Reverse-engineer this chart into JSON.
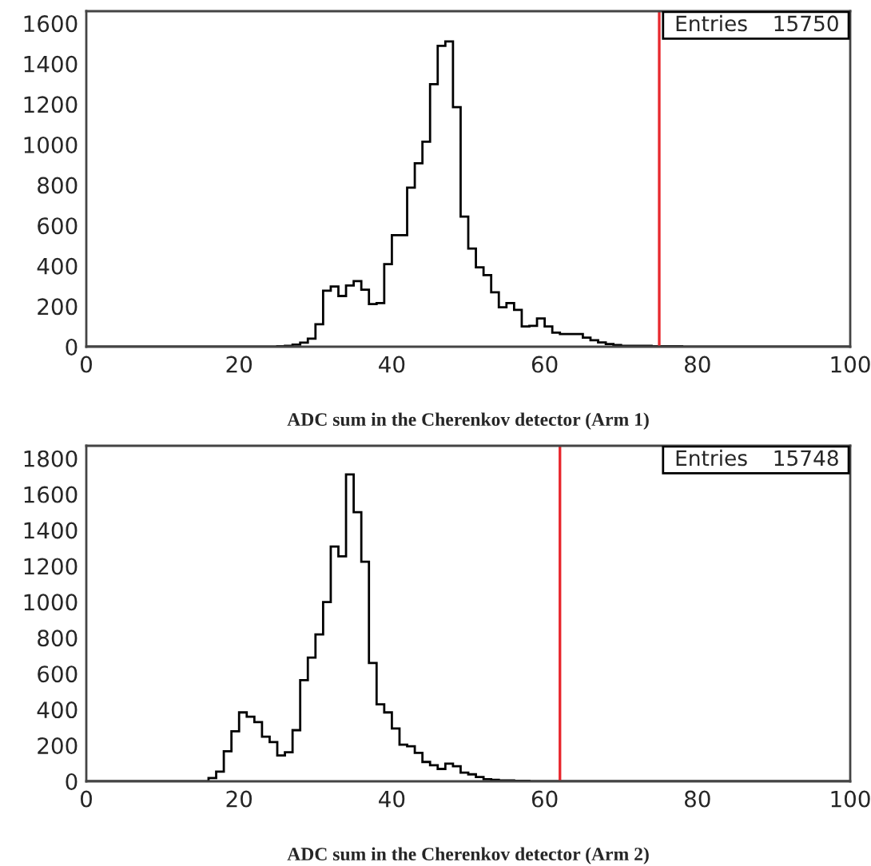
{
  "chart_data": [
    {
      "type": "histogram",
      "xlabel": "ADC sum in the Cherenkov detector (Arm 1)",
      "bins": [
        0,
        1,
        2,
        3,
        4,
        5,
        6,
        7,
        8,
        9,
        10,
        11,
        12,
        13,
        14,
        15,
        16,
        17,
        18,
        19,
        20,
        21,
        22,
        23,
        24,
        25,
        26,
        27,
        28,
        29,
        30,
        31,
        32,
        33,
        34,
        35,
        36,
        37,
        38,
        39,
        40,
        41,
        42,
        43,
        44,
        45,
        46,
        47,
        48,
        49,
        50,
        51,
        52,
        53,
        54,
        55,
        56,
        57,
        58,
        59,
        60,
        61,
        62,
        63,
        64,
        65,
        66,
        67,
        68,
        69,
        70,
        71,
        72,
        73,
        74,
        75,
        76,
        77,
        78,
        79,
        80,
        81,
        82,
        83,
        84,
        85,
        86,
        87,
        88,
        89,
        90,
        91,
        92,
        93,
        94,
        95,
        96,
        97,
        98,
        99,
        100
      ],
      "values": [
        0,
        0,
        0,
        0,
        0,
        0,
        0,
        0,
        0,
        0,
        0,
        0,
        0,
        0,
        0,
        0,
        0,
        0,
        0,
        0,
        0,
        0,
        0,
        0,
        0,
        2,
        4,
        10,
        20,
        40,
        111,
        277,
        298,
        251,
        303,
        325,
        282,
        211,
        216,
        409,
        552,
        552,
        787,
        908,
        1014,
        1299,
        1489,
        1510,
        1185,
        644,
        486,
        393,
        354,
        269,
        195,
        216,
        182,
        100,
        103,
        140,
        100,
        70,
        63,
        63,
        63,
        45,
        32,
        21,
        13,
        8,
        5,
        5,
        4,
        4,
        3,
        3,
        2,
        2,
        1,
        1,
        1,
        0,
        0,
        0,
        0,
        0,
        0,
        0,
        0,
        0,
        0,
        0,
        0,
        0,
        0,
        0,
        0,
        0,
        0,
        0
      ],
      "color": "#000000",
      "xlim": [
        0,
        100
      ],
      "xticks": [
        0,
        20,
        40,
        60,
        80,
        100
      ],
      "ylim": [
        0,
        1660
      ],
      "yticks": [
        0,
        200,
        400,
        600,
        800,
        1000,
        1200,
        1400,
        1600
      ],
      "ref_lines": [
        {
          "axis": "x",
          "value": 75,
          "color": "#e8282e"
        }
      ],
      "annotations": [
        "Entries",
        "15750"
      ],
      "grid": false
    },
    {
      "type": "histogram",
      "xlabel": "ADC sum in the Cherenkov detector (Arm 2)",
      "bins": [
        0,
        1,
        2,
        3,
        4,
        5,
        6,
        7,
        8,
        9,
        10,
        11,
        12,
        13,
        14,
        15,
        16,
        17,
        18,
        19,
        20,
        21,
        22,
        23,
        24,
        25,
        26,
        27,
        28,
        29,
        30,
        31,
        32,
        33,
        34,
        35,
        36,
        37,
        38,
        39,
        40,
        41,
        42,
        43,
        44,
        45,
        46,
        47,
        48,
        49,
        50,
        51,
        52,
        53,
        54,
        55,
        56,
        57,
        58,
        59,
        60,
        61,
        62,
        63,
        64,
        65,
        66,
        67,
        68,
        69,
        70,
        71,
        72,
        73,
        74,
        75,
        76,
        77,
        78,
        79,
        80,
        81,
        82,
        83,
        84,
        85,
        86,
        87,
        88,
        89,
        90,
        91,
        92,
        93,
        94,
        95,
        96,
        97,
        98,
        99,
        100
      ],
      "values": [
        0,
        0,
        0,
        0,
        0,
        0,
        0,
        0,
        0,
        0,
        0,
        0,
        0,
        0,
        0,
        0,
        18,
        54,
        168,
        279,
        384,
        360,
        330,
        249,
        219,
        144,
        162,
        285,
        564,
        690,
        819,
        999,
        1308,
        1254,
        1710,
        1500,
        1224,
        660,
        429,
        384,
        294,
        204,
        195,
        159,
        108,
        90,
        69,
        99,
        84,
        48,
        39,
        24,
        12,
        8,
        6,
        5,
        4,
        3,
        2,
        2,
        1,
        1,
        0,
        0,
        0,
        0,
        0,
        0,
        0,
        0,
        0,
        0,
        0,
        0,
        0,
        0,
        0,
        0,
        0,
        0,
        0,
        0,
        0,
        0,
        0,
        0,
        0,
        0,
        0,
        0,
        0,
        0,
        0,
        0,
        0,
        0,
        0,
        0,
        0,
        0
      ],
      "color": "#000000",
      "xlim": [
        0,
        100
      ],
      "xticks": [
        0,
        20,
        40,
        60,
        80,
        100
      ],
      "ylim": [
        0,
        1870
      ],
      "yticks": [
        0,
        200,
        400,
        600,
        800,
        1000,
        1200,
        1400,
        1600,
        1800
      ],
      "ref_lines": [
        {
          "axis": "x",
          "value": 62,
          "color": "#e8282e"
        }
      ],
      "annotations": [
        "Entries",
        "15748"
      ],
      "grid": false
    }
  ]
}
